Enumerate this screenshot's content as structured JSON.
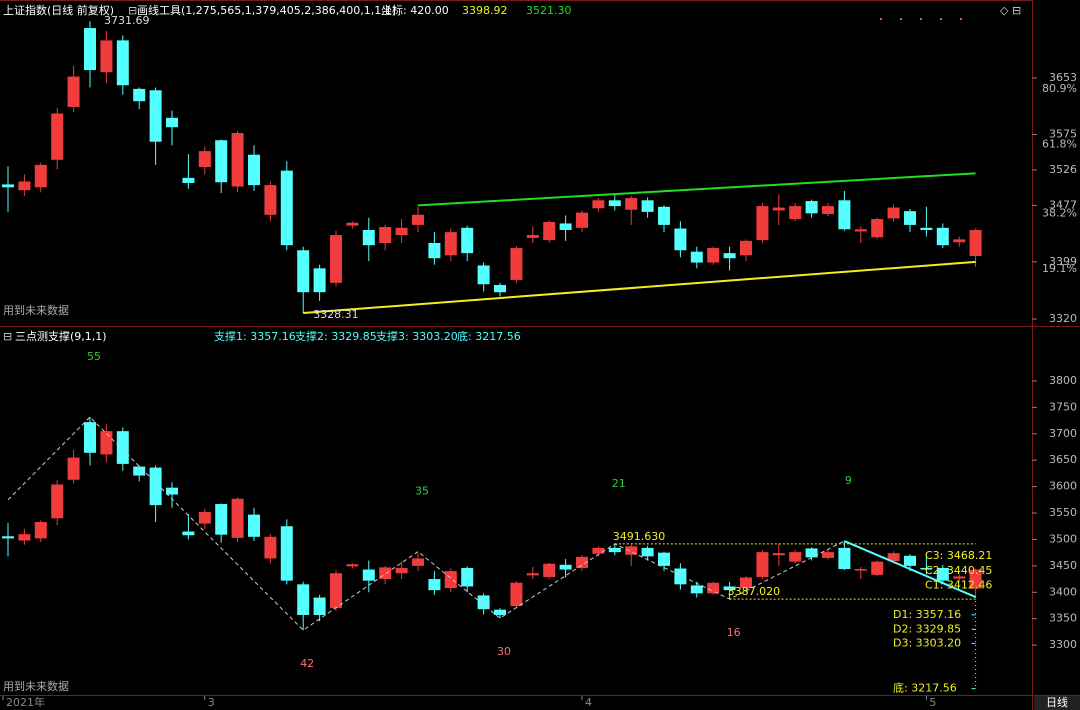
{
  "chart_data": [
    {
      "type": "candlestick",
      "title": "上证指数(日线 前复权)",
      "tool": "画线工具(1,275,565,1,379,405,2,386,400,1,1,1)",
      "coord": "坐标: 420.00",
      "line_values": [
        "3398.92",
        "3521.30"
      ],
      "note": "用到未来数据",
      "period_button": "日线",
      "categories": [
        "2021年",
        null,
        null,
        null,
        null,
        null,
        null,
        null,
        null,
        null,
        null,
        null,
        "3",
        null,
        null,
        null,
        null,
        null,
        null,
        null,
        null,
        null,
        null,
        null,
        null,
        null,
        null,
        null,
        null,
        null,
        null,
        null,
        null,
        null,
        null,
        "4",
        null,
        null,
        null,
        null,
        null,
        null,
        null,
        null,
        null,
        null,
        null,
        null,
        null,
        null,
        null,
        null,
        null,
        null,
        null,
        null,
        "5",
        null,
        null,
        null
      ],
      "open": [
        3506,
        3498,
        3502,
        3540,
        3613,
        3722,
        3661,
        3705,
        3638,
        3636,
        3598,
        3515,
        3530,
        3567,
        3503,
        3547,
        3464,
        3525,
        3415,
        3390,
        3370,
        3449,
        3443,
        3425,
        3436,
        3450,
        3425,
        3408,
        3446,
        3394,
        3367,
        3374,
        3432,
        3429,
        3452,
        3446,
        3473,
        3484,
        3471,
        3484,
        3475,
        3445,
        3413,
        3398,
        3411,
        3408,
        3429,
        3470,
        3458,
        3483,
        3465,
        3484,
        3441,
        3433,
        3459,
        3469,
        3446,
        3446,
        3426,
        3407
      ],
      "high": [
        3531,
        3520,
        3536,
        3612,
        3670,
        3731.69,
        3718,
        3712,
        3640,
        3640,
        3608,
        3548,
        3558,
        3568,
        3580,
        3560,
        3510,
        3538,
        3420,
        3395,
        3442,
        3455,
        3460,
        3450,
        3458,
        3475,
        3440,
        3445,
        3449,
        3398,
        3370,
        3421,
        3448,
        3456,
        3463,
        3470,
        3487,
        3491.63,
        3490,
        3488,
        3477,
        3455,
        3420,
        3420,
        3420,
        3430,
        3480,
        3492,
        3480,
        3485,
        3480,
        3497,
        3448,
        3460,
        3478,
        3472,
        3475,
        3452,
        3434,
        3445
      ],
      "low": [
        3468,
        3490,
        3495,
        3527,
        3606,
        3640,
        3646,
        3630,
        3610,
        3533,
        3560,
        3500,
        3520,
        3494,
        3495,
        3497,
        3455,
        3415,
        3328.31,
        3345,
        3365,
        3445,
        3400,
        3415,
        3425,
        3440,
        3395,
        3400,
        3400,
        3358,
        3351,
        3370,
        3425,
        3425,
        3428,
        3440,
        3468,
        3470,
        3450,
        3460,
        3440,
        3405,
        3390,
        3395,
        3387.02,
        3400,
        3425,
        3450,
        3455,
        3460,
        3462,
        3442,
        3425,
        3430,
        3455,
        3440,
        3434,
        3418,
        3420,
        3392
      ],
      "close": [
        3502,
        3510,
        3533,
        3604,
        3655,
        3664,
        3705,
        3643,
        3621,
        3565,
        3585,
        3508,
        3552,
        3509,
        3577,
        3505,
        3505,
        3422,
        3357,
        3357,
        3436,
        3453,
        3422,
        3447,
        3446,
        3464,
        3404,
        3440,
        3411,
        3368,
        3357,
        3418,
        3436,
        3454,
        3443,
        3467,
        3484,
        3476,
        3487,
        3468,
        3450,
        3415,
        3398,
        3418,
        3404,
        3428,
        3476,
        3474,
        3476,
        3466,
        3476,
        3444,
        3444,
        3458,
        3474,
        3450,
        3443,
        3422,
        3430,
        3443
      ],
      "up_color": "#f03c3c",
      "down_color": "#54ffff",
      "ylim": [
        3311.7,
        3760.8
      ],
      "yticks": [
        3320,
        3399,
        3477,
        3526,
        3575,
        3653
      ],
      "fib_labels": [
        {
          "value": 3654.6,
          "label": "80.9%"
        },
        {
          "value": 3577.6,
          "label": "61.8%"
        },
        {
          "value": 3482.4,
          "label": "38.2%"
        },
        {
          "value": 3405.4,
          "label": "19.1%"
        }
      ],
      "trendlines": [
        {
          "color": "#22dd22",
          "x": [
            25,
            59
          ],
          "values": [
            3477,
            3521.3
          ]
        },
        {
          "color": "#f0f020",
          "x": [
            18,
            59
          ],
          "values": [
            3328.31,
            3398.92
          ]
        }
      ]
    },
    {
      "type": "indicator",
      "title": "三点测支撑(9,1,1)",
      "supports": [
        "支撑1: 3357.16",
        "支撑2: 3329.85",
        "支撑3: 3303.20",
        "底: 3217.56"
      ],
      "note": "用到未来数据",
      "ylim": [
        3215,
        3887
      ],
      "yticks": [
        3300,
        3350,
        3400,
        3450,
        3500,
        3550,
        3600,
        3650,
        3700,
        3750,
        3800
      ],
      "zigzag": {
        "x": [
          0,
          5,
          18,
          25,
          30,
          37,
          44,
          51
        ],
        "values": [
          3575,
          3731.69,
          3328.31,
          3477,
          3351,
          3491.63,
          3387.02,
          3497
        ]
      },
      "count_labels": {
        "x": [
          5,
          18,
          25,
          30,
          37,
          44,
          51
        ],
        "values": [
          55,
          42,
          35,
          30,
          21,
          16,
          9
        ]
      },
      "levels": [
        {
          "value": 3491.63,
          "label": "3491.630",
          "from": 37
        },
        {
          "value": 3387.02,
          "label": "3387.020",
          "from": 44
        }
      ],
      "projection": {
        "x": [
          51,
          59
        ],
        "values": [
          3497,
          3391
        ]
      },
      "c_levels": [
        {
          "value": 3468.21,
          "label": "C3: 3468.21"
        },
        {
          "value": 3440.45,
          "label": "C2: 3440.45"
        },
        {
          "value": 3412.46,
          "label": "C1: 3412.46"
        }
      ],
      "d_levels": [
        {
          "value": 3357.16,
          "label": "D1: 3357.16"
        },
        {
          "value": 3329.85,
          "label": "D2: 3329.85"
        },
        {
          "value": 3303.2,
          "label": "D3: 3303.20"
        },
        {
          "value": 3217.56,
          "label": "底: 3217.56"
        }
      ]
    }
  ]
}
